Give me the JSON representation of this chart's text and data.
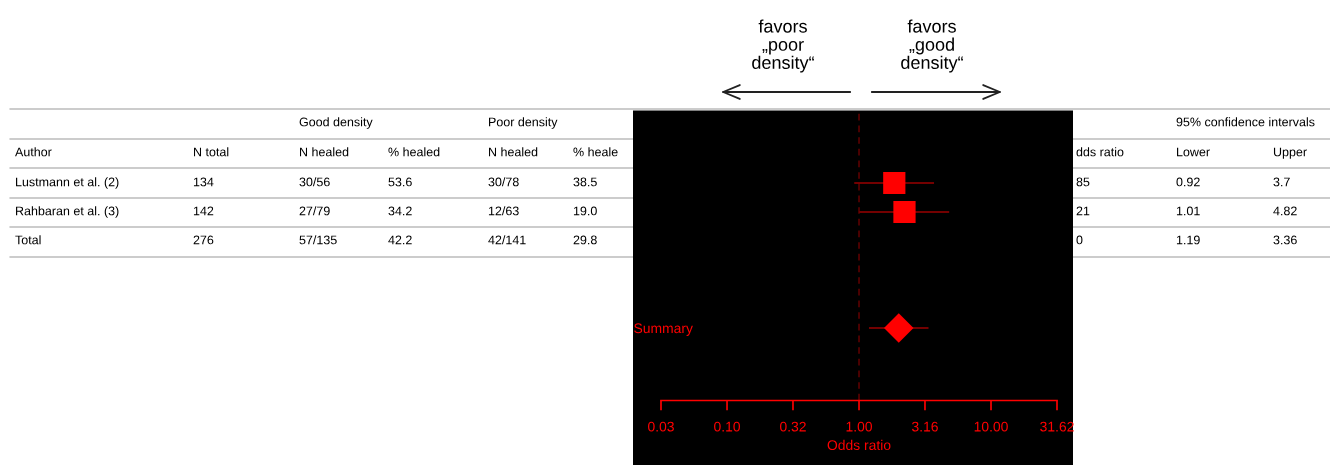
{
  "chart_data": {
    "type": "scatter",
    "orientation": "horizontal",
    "categories": [
      null,
      null,
      null,
      null,
      null,
      null,
      null,
      "Summary",
      null,
      null
    ],
    "series": [
      {
        "marker": "square",
        "color": "#ff0000",
        "values": [
          null,
          null,
          1.85,
          2.21,
          null,
          null,
          null,
          null,
          null,
          null
        ],
        "errors": [
          null,
          null,
          [
            0.92,
            3.7
          ],
          [
            1.01,
            4.82
          ],
          null,
          null,
          null,
          null,
          null,
          null
        ]
      },
      {
        "marker": "diamond",
        "color": "#ff0000",
        "values": [
          null,
          null,
          null,
          null,
          null,
          null,
          null,
          2.0,
          null,
          null
        ],
        "errors": [
          null,
          null,
          null,
          null,
          null,
          null,
          null,
          [
            1.19,
            3.36
          ],
          null,
          null
        ]
      }
    ],
    "log": "x",
    "xlim": [
      0.0316,
      31.62
    ],
    "xticks": [
      {
        "value": 0.0316,
        "label": "0.03"
      },
      {
        "value": 0.1,
        "label": "0.10"
      },
      {
        "value": 0.316,
        "label": "0.32"
      },
      {
        "value": 1,
        "label": "1.00"
      },
      {
        "value": 3.16,
        "label": "3.16"
      },
      {
        "value": 10,
        "label": "10.00"
      },
      {
        "value": 31.62,
        "label": "31.62"
      }
    ],
    "xlabel": "Odds ratio",
    "grid": false,
    "ref_lines": [
      {
        "axis": "x",
        "value": 1,
        "color": "#5a0000",
        "line_style": "dashed"
      }
    ],
    "annotations": [
      "favors\n„poor\ndensity“",
      "favors\n„good\ndensity“",
      "Good density",
      "Poor density",
      "95% confidence intervals",
      "Author",
      "N total",
      "N healed",
      "% healed",
      "N healed",
      "% heale",
      "dds ratio",
      "Lower",
      "Upper",
      "Lustmann et al. (2)",
      "134",
      "30/56",
      "53.6",
      "30/78",
      "38.5",
      "85",
      "0.92",
      "3.7",
      "Rahbaran et al. (3)",
      "142",
      "27/79",
      "34.2",
      "12/63",
      "19.0",
      "21",
      "1.01",
      "4.82",
      "Total",
      "276",
      "57/135",
      "42.2",
      "42/141",
      "29.8",
      "0",
      "1.19",
      "3.36"
    ]
  }
}
